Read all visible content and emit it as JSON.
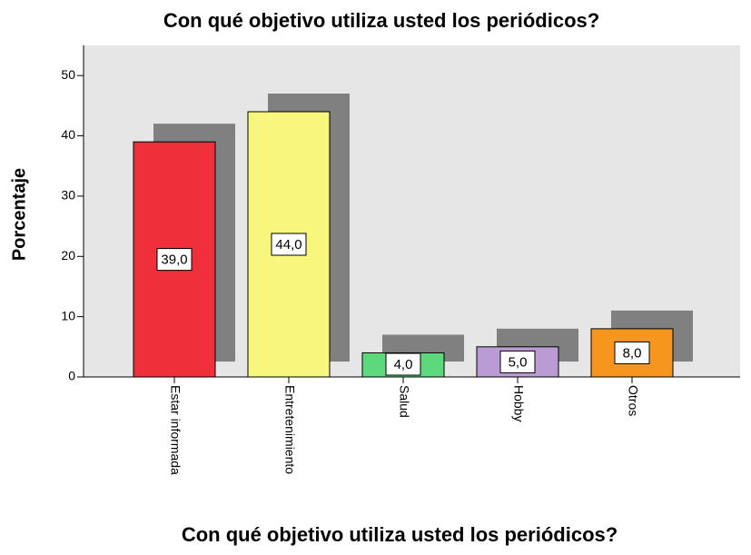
{
  "chart_data": {
    "type": "bar",
    "title": "Con qué objetivo utiliza usted los periódicos?",
    "x_label": "Con qué objetivo utiliza usted los periódicos?",
    "y_label": "Porcentaje",
    "categories": [
      "Estar informada",
      "Entretenimiento",
      "Salud",
      "Hobby",
      "Otros"
    ],
    "values": [
      39.0,
      44.0,
      4.0,
      5.0,
      8.0
    ],
    "value_labels": [
      "39,0",
      "44,0",
      "4,0",
      "5,0",
      "8,0"
    ],
    "colors": [
      "#ef2f3a",
      "#f8f67c",
      "#5ed87c",
      "#bb9bd3",
      "#f7961f"
    ],
    "ylim": [
      0,
      55
    ],
    "yticks": [
      0,
      10,
      20,
      30,
      40,
      50
    ]
  }
}
